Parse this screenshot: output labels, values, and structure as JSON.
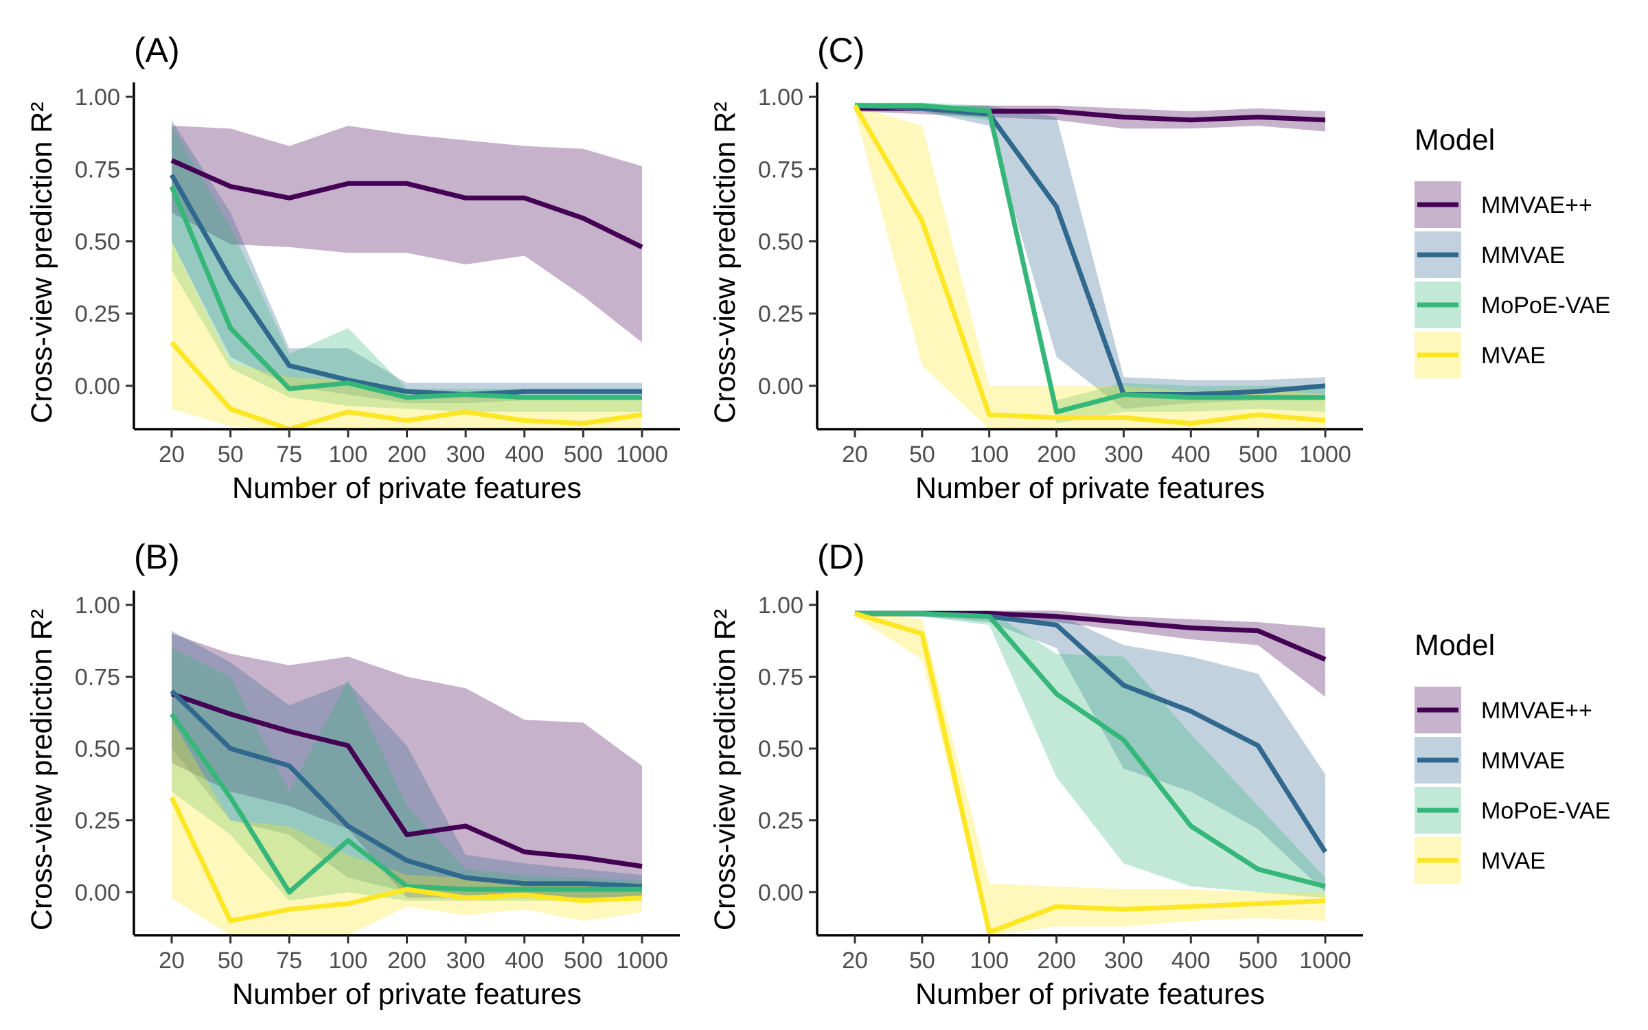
{
  "chart_data": [
    {
      "panel": "(A)",
      "type": "line",
      "xlabel": "Number of private features",
      "ylabel": "Cross-view prediction R²",
      "categories": [
        "20",
        "50",
        "75",
        "100",
        "200",
        "300",
        "400",
        "500",
        "1000"
      ],
      "ylim": [
        -0.15,
        1.05
      ],
      "yticks": [
        "0.00",
        "0.25",
        "0.50",
        "0.75",
        "1.00"
      ],
      "series": [
        {
          "name": "MMVAE++",
          "values": [
            0.78,
            0.69,
            0.65,
            0.7,
            0.7,
            0.65,
            0.65,
            0.58,
            0.48
          ],
          "lower": [
            0.6,
            0.49,
            0.48,
            0.46,
            0.46,
            0.42,
            0.45,
            0.31,
            0.15
          ],
          "upper": [
            0.9,
            0.89,
            0.83,
            0.9,
            0.87,
            0.85,
            0.83,
            0.82,
            0.76
          ]
        },
        {
          "name": "MMVAE",
          "values": [
            0.73,
            0.37,
            0.07,
            0.02,
            -0.02,
            -0.03,
            -0.02,
            -0.02,
            -0.02
          ],
          "lower": [
            0.5,
            0.1,
            0.0,
            -0.03,
            -0.06,
            -0.06,
            -0.05,
            -0.05,
            -0.05
          ],
          "upper": [
            0.92,
            0.6,
            0.13,
            0.13,
            0.01,
            0.01,
            0.01,
            0.01,
            0.01
          ]
        },
        {
          "name": "MoPoE-VAE",
          "values": [
            0.69,
            0.2,
            -0.01,
            0.01,
            -0.04,
            -0.03,
            -0.04,
            -0.04,
            -0.04
          ],
          "lower": [
            0.4,
            0.06,
            -0.04,
            -0.07,
            -0.08,
            -0.09,
            -0.09,
            -0.09,
            -0.09
          ],
          "upper": [
            0.9,
            0.55,
            0.11,
            0.2,
            -0.01,
            -0.01,
            -0.01,
            -0.01,
            -0.01
          ]
        },
        {
          "name": "MVAE",
          "values": [
            0.15,
            -0.08,
            -0.15,
            -0.09,
            -0.12,
            -0.09,
            -0.12,
            -0.13,
            -0.1
          ],
          "lower": [
            -0.08,
            -0.14,
            -0.15,
            -0.15,
            -0.15,
            -0.15,
            -0.15,
            -0.15,
            -0.15
          ],
          "upper": [
            0.5,
            0.08,
            0.03,
            0.02,
            -0.03,
            -0.04,
            -0.04,
            -0.05,
            -0.05
          ]
        }
      ]
    },
    {
      "panel": "(C)",
      "type": "line",
      "xlabel": "Number of private features",
      "ylabel": "Cross-view prediction R²",
      "categories": [
        "20",
        "50",
        "100",
        "200",
        "300",
        "400",
        "500",
        "1000"
      ],
      "ylim": [
        -0.15,
        1.05
      ],
      "yticks": [
        "0.00",
        "0.25",
        "0.50",
        "0.75",
        "1.00"
      ],
      "series": [
        {
          "name": "MMVAE++",
          "values": [
            0.96,
            0.96,
            0.95,
            0.95,
            0.93,
            0.92,
            0.93,
            0.92
          ],
          "lower": [
            0.95,
            0.94,
            0.93,
            0.92,
            0.89,
            0.89,
            0.9,
            0.88
          ],
          "upper": [
            0.97,
            0.97,
            0.97,
            0.97,
            0.96,
            0.95,
            0.96,
            0.95
          ]
        },
        {
          "name": "MMVAE",
          "values": [
            0.97,
            0.96,
            0.94,
            0.62,
            -0.03,
            -0.03,
            -0.02,
            0.0
          ],
          "lower": [
            0.96,
            0.95,
            0.9,
            0.1,
            -0.08,
            -0.06,
            -0.05,
            -0.05
          ],
          "upper": [
            0.98,
            0.97,
            0.97,
            0.93,
            0.03,
            0.02,
            0.02,
            0.03
          ]
        },
        {
          "name": "MoPoE-VAE",
          "values": [
            0.97,
            0.97,
            0.95,
            -0.09,
            -0.03,
            -0.04,
            -0.04,
            -0.04
          ],
          "lower": [
            0.96,
            0.95,
            0.92,
            -0.13,
            -0.09,
            -0.09,
            -0.08,
            -0.09
          ],
          "upper": [
            0.98,
            0.98,
            0.97,
            -0.05,
            0.01,
            0.0,
            0.0,
            0.0
          ]
        },
        {
          "name": "MVAE",
          "values": [
            0.97,
            0.57,
            -0.1,
            -0.11,
            -0.11,
            -0.13,
            -0.1,
            -0.12
          ],
          "lower": [
            0.95,
            0.07,
            -0.15,
            -0.15,
            -0.15,
            -0.15,
            -0.15,
            -0.15
          ],
          "upper": [
            0.97,
            0.9,
            0.0,
            0.0,
            0.0,
            -0.02,
            -0.01,
            -0.03
          ]
        }
      ]
    },
    {
      "panel": "(B)",
      "type": "line",
      "xlabel": "Number of private features",
      "ylabel": "Cross-view prediction R²",
      "categories": [
        "20",
        "50",
        "75",
        "100",
        "200",
        "300",
        "400",
        "500",
        "1000"
      ],
      "ylim": [
        -0.15,
        1.05
      ],
      "yticks": [
        "0.00",
        "0.25",
        "0.50",
        "0.75",
        "1.00"
      ],
      "series": [
        {
          "name": "MMVAE++",
          "values": [
            0.69,
            0.62,
            0.56,
            0.51,
            0.2,
            0.23,
            0.14,
            0.12,
            0.09
          ],
          "lower": [
            0.45,
            0.35,
            0.3,
            0.22,
            -0.02,
            -0.02,
            -0.02,
            -0.02,
            -0.02
          ],
          "upper": [
            0.9,
            0.83,
            0.79,
            0.82,
            0.75,
            0.71,
            0.6,
            0.59,
            0.44
          ]
        },
        {
          "name": "MMVAE",
          "values": [
            0.7,
            0.5,
            0.44,
            0.23,
            0.11,
            0.05,
            0.03,
            0.03,
            0.02
          ],
          "lower": [
            0.5,
            0.25,
            0.2,
            0.05,
            0.0,
            -0.02,
            -0.02,
            -0.02,
            -0.02
          ],
          "upper": [
            0.91,
            0.8,
            0.65,
            0.73,
            0.51,
            0.13,
            0.1,
            0.08,
            0.06
          ]
        },
        {
          "name": "MoPoE-VAE",
          "values": [
            0.62,
            0.33,
            0.0,
            0.18,
            0.02,
            0.01,
            0.01,
            0.01,
            0.01
          ],
          "lower": [
            0.35,
            0.2,
            -0.03,
            0.0,
            -0.03,
            -0.03,
            -0.03,
            -0.03,
            -0.03
          ],
          "upper": [
            0.85,
            0.75,
            0.35,
            0.74,
            0.3,
            0.08,
            0.06,
            0.05,
            0.04
          ]
        },
        {
          "name": "MVAE",
          "values": [
            0.33,
            -0.1,
            -0.06,
            -0.04,
            0.01,
            -0.02,
            -0.01,
            -0.03,
            -0.02
          ],
          "lower": [
            -0.02,
            -0.15,
            -0.15,
            -0.15,
            -0.05,
            -0.08,
            -0.06,
            -0.1,
            -0.07
          ],
          "upper": [
            0.6,
            0.25,
            0.23,
            0.13,
            0.06,
            0.05,
            0.04,
            0.03,
            0.03
          ]
        }
      ]
    },
    {
      "panel": "(D)",
      "type": "line",
      "xlabel": "Number of private features",
      "ylabel": "Cross-view prediction R²",
      "categories": [
        "20",
        "50",
        "100",
        "200",
        "300",
        "400",
        "500",
        "1000"
      ],
      "ylim": [
        -0.15,
        1.05
      ],
      "yticks": [
        "0.00",
        "0.25",
        "0.50",
        "0.75",
        "1.00"
      ],
      "series": [
        {
          "name": "MMVAE++",
          "values": [
            0.97,
            0.97,
            0.97,
            0.96,
            0.94,
            0.92,
            0.91,
            0.81
          ],
          "lower": [
            0.96,
            0.96,
            0.96,
            0.94,
            0.91,
            0.88,
            0.86,
            0.68
          ],
          "upper": [
            0.98,
            0.98,
            0.98,
            0.98,
            0.96,
            0.95,
            0.94,
            0.92
          ]
        },
        {
          "name": "MMVAE",
          "values": [
            0.97,
            0.97,
            0.96,
            0.93,
            0.72,
            0.63,
            0.51,
            0.14
          ],
          "lower": [
            0.96,
            0.96,
            0.94,
            0.85,
            0.43,
            0.35,
            0.22,
            0.0
          ],
          "upper": [
            0.98,
            0.98,
            0.98,
            0.97,
            0.86,
            0.82,
            0.76,
            0.41
          ]
        },
        {
          "name": "MoPoE-VAE",
          "values": [
            0.97,
            0.97,
            0.96,
            0.69,
            0.53,
            0.23,
            0.08,
            0.02
          ],
          "lower": [
            0.96,
            0.96,
            0.93,
            0.4,
            0.1,
            0.02,
            0.0,
            -0.02
          ],
          "upper": [
            0.98,
            0.98,
            0.98,
            0.83,
            0.82,
            0.55,
            0.3,
            0.05
          ]
        },
        {
          "name": "MVAE",
          "values": [
            0.97,
            0.9,
            -0.14,
            -0.05,
            -0.06,
            -0.05,
            -0.04,
            -0.03
          ],
          "lower": [
            0.96,
            0.81,
            -0.15,
            -0.12,
            -0.12,
            -0.1,
            -0.09,
            -0.1
          ],
          "upper": [
            0.98,
            0.95,
            0.03,
            0.02,
            0.01,
            0.01,
            0.0,
            0.0
          ]
        }
      ]
    }
  ],
  "legend": {
    "title": "Model",
    "entries": [
      "MMVAE++",
      "MMVAE",
      "MoPoE-VAE",
      "MVAE"
    ]
  },
  "colors": {
    "MMVAE++": "#440154",
    "MMVAE": "#31688E",
    "MoPoE-VAE": "#35B779",
    "MVAE": "#FDE725"
  }
}
